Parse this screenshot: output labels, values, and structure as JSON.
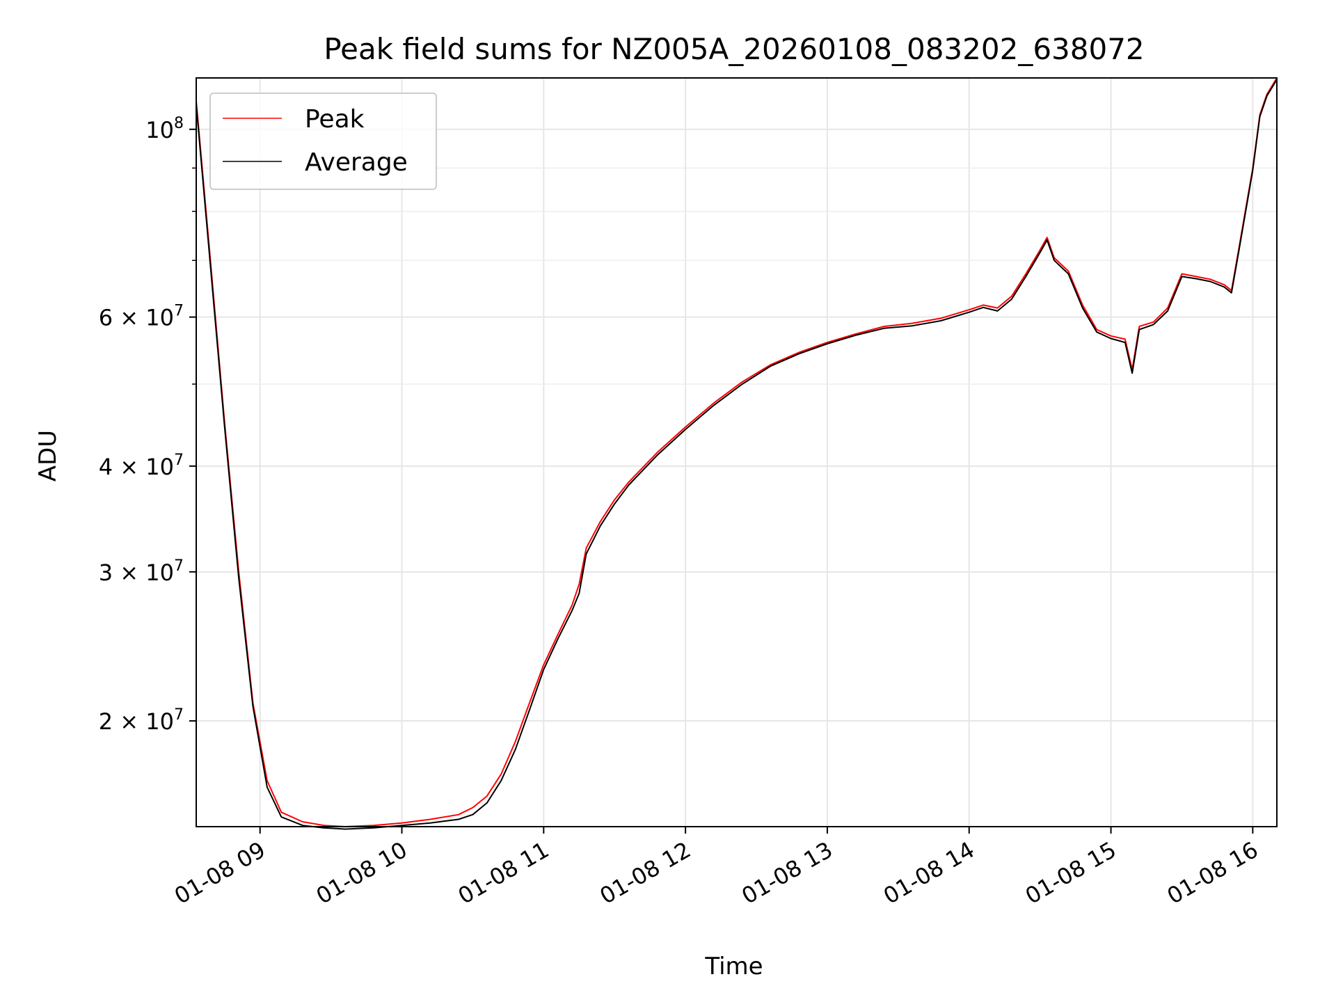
{
  "chart_data": {
    "type": "line",
    "title": "Peak field sums for NZ005A_20260108_083202_638072",
    "xlabel": "Time",
    "ylabel": "ADU",
    "yscale": "log",
    "xlim": [
      8.55,
      16.17
    ],
    "ylim": [
      15000000,
      115000000
    ],
    "grid": true,
    "legend_position": "top-left",
    "x_ticks": [
      {
        "value": 9,
        "label": "01-08 09"
      },
      {
        "value": 10,
        "label": "01-08 10"
      },
      {
        "value": 11,
        "label": "01-08 11"
      },
      {
        "value": 12,
        "label": "01-08 12"
      },
      {
        "value": 13,
        "label": "01-08 13"
      },
      {
        "value": 14,
        "label": "01-08 14"
      },
      {
        "value": 15,
        "label": "01-08 15"
      },
      {
        "value": 16,
        "label": "01-08 16"
      }
    ],
    "y_ticks": [
      {
        "value": 20000000,
        "mantissa": "2",
        "times": "×",
        "base": "10",
        "exp": "7"
      },
      {
        "value": 30000000,
        "mantissa": "3",
        "times": "×",
        "base": "10",
        "exp": "7"
      },
      {
        "value": 40000000,
        "mantissa": "4",
        "times": "×",
        "base": "10",
        "exp": "7"
      },
      {
        "value": 60000000,
        "mantissa": "6",
        "times": "×",
        "base": "10",
        "exp": "7"
      },
      {
        "value": 100000000,
        "mantissa": "",
        "times": "",
        "base": "10",
        "exp": "8"
      }
    ],
    "y_minor_ticks": [
      50000000,
      70000000,
      80000000,
      90000000
    ],
    "series": [
      {
        "name": "Peak",
        "color": "#ff0000",
        "x": [
          8.55,
          8.65,
          8.75,
          8.85,
          8.95,
          9.05,
          9.15,
          9.3,
          9.45,
          9.6,
          9.8,
          10.0,
          10.2,
          10.4,
          10.5,
          10.6,
          10.7,
          10.8,
          10.9,
          11.0,
          11.1,
          11.2,
          11.25,
          11.3,
          11.4,
          11.5,
          11.6,
          11.8,
          12.0,
          12.2,
          12.4,
          12.6,
          12.8,
          13.0,
          13.2,
          13.4,
          13.6,
          13.8,
          14.0,
          14.1,
          14.2,
          14.3,
          14.4,
          14.5,
          14.55,
          14.6,
          14.7,
          14.8,
          14.9,
          15.0,
          15.1,
          15.15,
          15.2,
          15.3,
          15.4,
          15.5,
          15.6,
          15.7,
          15.8,
          15.85,
          15.9,
          16.0,
          16.05,
          16.1,
          16.17
        ],
        "values": [
          108000000,
          70000000,
          45000000,
          30000000,
          21000000,
          17000000,
          15600000,
          15200000,
          15050000,
          15000000,
          15050000,
          15150000,
          15300000,
          15500000,
          15800000,
          16300000,
          17300000,
          18900000,
          21000000,
          23300000,
          25300000,
          27400000,
          29000000,
          32000000,
          34400000,
          36500000,
          38300000,
          41500000,
          44500000,
          47500000,
          50300000,
          52700000,
          54500000,
          56000000,
          57300000,
          58500000,
          59000000,
          59800000,
          61200000,
          62000000,
          61500000,
          63500000,
          67500000,
          72000000,
          74500000,
          70500000,
          68000000,
          62000000,
          58000000,
          57000000,
          56500000,
          52000000,
          58500000,
          59200000,
          61500000,
          67500000,
          67000000,
          66500000,
          65500000,
          64500000,
          72000000,
          90000000,
          104000000,
          110000000,
          115000000
        ]
      },
      {
        "name": "Average",
        "color": "#000000",
        "x": [
          8.55,
          8.65,
          8.75,
          8.85,
          8.95,
          9.05,
          9.15,
          9.3,
          9.45,
          9.6,
          9.8,
          10.0,
          10.2,
          10.4,
          10.5,
          10.6,
          10.7,
          10.8,
          10.9,
          11.0,
          11.1,
          11.2,
          11.25,
          11.3,
          11.4,
          11.5,
          11.6,
          11.8,
          12.0,
          12.2,
          12.4,
          12.6,
          12.8,
          13.0,
          13.2,
          13.4,
          13.6,
          13.8,
          14.0,
          14.1,
          14.2,
          14.3,
          14.4,
          14.5,
          14.55,
          14.6,
          14.7,
          14.8,
          14.9,
          15.0,
          15.1,
          15.15,
          15.2,
          15.3,
          15.4,
          15.5,
          15.6,
          15.7,
          15.8,
          15.85,
          15.9,
          16.0,
          16.05,
          16.1,
          16.17
        ],
        "values": [
          107000000,
          69000000,
          44500000,
          29500000,
          20800000,
          16700000,
          15400000,
          15050000,
          14950000,
          14900000,
          14950000,
          15050000,
          15150000,
          15300000,
          15500000,
          16000000,
          17000000,
          18500000,
          20600000,
          23000000,
          25000000,
          27000000,
          28300000,
          31500000,
          34000000,
          36100000,
          38000000,
          41200000,
          44200000,
          47200000,
          50000000,
          52500000,
          54300000,
          55800000,
          57100000,
          58200000,
          58600000,
          59400000,
          60800000,
          61600000,
          61000000,
          63000000,
          67000000,
          71500000,
          74000000,
          70000000,
          67500000,
          61500000,
          57600000,
          56600000,
          56000000,
          51500000,
          58000000,
          58800000,
          61000000,
          67000000,
          66600000,
          66100000,
          65100000,
          64100000,
          71500000,
          89500000,
          103500000,
          109500000,
          114500000
        ]
      }
    ]
  }
}
